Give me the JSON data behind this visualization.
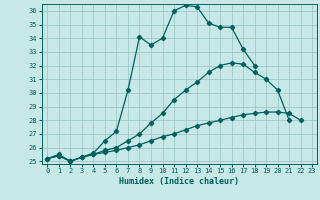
{
  "xlabel": "Humidex (Indice chaleur)",
  "bg_color": "#c8e8e8",
  "grid_color": "#a0c8c8",
  "line_color": "#006060",
  "xlim": [
    -0.5,
    23.4
  ],
  "ylim": [
    24.8,
    36.5
  ],
  "yticks": [
    25,
    26,
    27,
    28,
    29,
    30,
    31,
    32,
    33,
    34,
    35,
    36
  ],
  "xticks": [
    0,
    1,
    2,
    3,
    4,
    5,
    6,
    7,
    8,
    9,
    10,
    11,
    12,
    13,
    14,
    15,
    16,
    17,
    18,
    19,
    20,
    21,
    22,
    23
  ],
  "line1_x": [
    0,
    1,
    2,
    3,
    4,
    5,
    6,
    7,
    8,
    9,
    10,
    11,
    12,
    13,
    14,
    15,
    16,
    17,
    18,
    19,
    20,
    21,
    22
  ],
  "line1_y": [
    25.2,
    25.5,
    25.0,
    25.3,
    25.6,
    26.5,
    27.2,
    30.2,
    34.1,
    33.5,
    34.0,
    36.0,
    36.4,
    36.3,
    35.1,
    34.8,
    34.8,
    33.2,
    32.0,
    null,
    null,
    null,
    null
  ],
  "line2_x": [
    0,
    1,
    2,
    3,
    4,
    5,
    6,
    7,
    8,
    9,
    10,
    11,
    12,
    13,
    14,
    15,
    16,
    17,
    18,
    19,
    20,
    21,
    22
  ],
  "line2_y": [
    25.2,
    25.4,
    25.0,
    25.3,
    25.5,
    25.8,
    26.0,
    26.5,
    27.0,
    27.8,
    28.5,
    29.5,
    30.2,
    30.8,
    31.5,
    32.0,
    32.2,
    32.1,
    31.5,
    31.0,
    30.2,
    28.0,
    null
  ],
  "line3_x": [
    0,
    1,
    2,
    3,
    4,
    5,
    6,
    7,
    8,
    9,
    10,
    11,
    12,
    13,
    14,
    15,
    16,
    17,
    18,
    19,
    20,
    21,
    22
  ],
  "line3_y": [
    25.2,
    25.4,
    25.0,
    25.3,
    25.5,
    25.65,
    25.8,
    26.0,
    26.2,
    26.5,
    26.8,
    27.0,
    27.3,
    27.6,
    27.8,
    28.0,
    28.2,
    28.4,
    28.5,
    28.6,
    28.6,
    28.5,
    28.0
  ]
}
